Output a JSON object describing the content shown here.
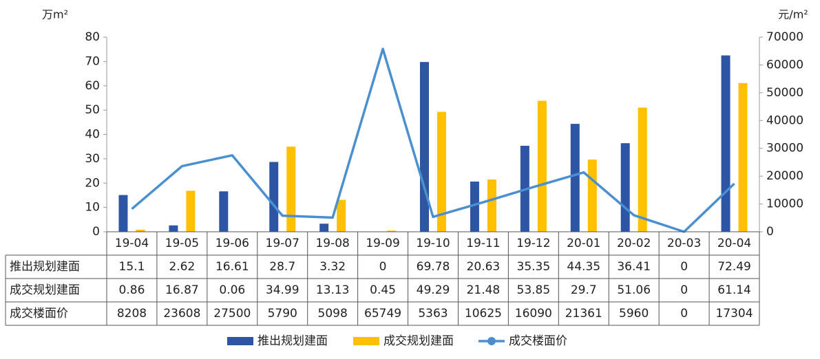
{
  "chart_data": {
    "type": "bar",
    "title": "",
    "left_unit": "万m²",
    "right_unit": "元/m²",
    "categories": [
      "19-04",
      "19-05",
      "19-06",
      "19-07",
      "19-08",
      "19-09",
      "19-10",
      "19-11",
      "19-12",
      "20-01",
      "20-02",
      "20-03",
      "20-04"
    ],
    "series": [
      {
        "name": "推出规划建面",
        "type": "bar",
        "axis": "left",
        "color": "#2E54A4",
        "values": [
          15.1,
          2.62,
          16.61,
          28.7,
          3.32,
          0,
          69.78,
          20.63,
          35.35,
          44.35,
          36.41,
          0,
          72.49
        ]
      },
      {
        "name": "成交规划建面",
        "type": "bar",
        "axis": "left",
        "color": "#FFC000",
        "values": [
          0.86,
          16.87,
          0.06,
          34.99,
          13.13,
          0.45,
          49.29,
          21.48,
          53.85,
          29.7,
          51.06,
          0,
          61.14
        ]
      },
      {
        "name": "成交楼面价",
        "type": "line",
        "axis": "right",
        "color": "#4A90D0",
        "values": [
          8208,
          23608,
          27500,
          5790,
          5098,
          65749,
          5363,
          10625,
          16090,
          21361,
          5960,
          0,
          17304
        ]
      }
    ],
    "table": {
      "rows": [
        {
          "label": "推出规划建面",
          "cells": [
            "15.1",
            "2.62",
            "16.61",
            "28.7",
            "3.32",
            "0",
            "69.78",
            "20.63",
            "35.35",
            "44.35",
            "36.41",
            "0",
            "72.49"
          ]
        },
        {
          "label": "成交规划建面",
          "cells": [
            "0.86",
            "16.87",
            "0.06",
            "34.99",
            "13.13",
            "0.45",
            "49.29",
            "21.48",
            "53.85",
            "29.7",
            "51.06",
            "0",
            "61.14"
          ]
        },
        {
          "label": "成交楼面价",
          "cells": [
            "8208",
            "23608",
            "27500",
            "5790",
            "5098",
            "65749",
            "5363",
            "10625",
            "16090",
            "21361",
            "5960",
            "0",
            "17304"
          ]
        }
      ]
    },
    "y_left": {
      "min": 0,
      "max": 80,
      "ticks": [
        "0",
        "10",
        "20",
        "30",
        "40",
        "50",
        "60",
        "70",
        "80"
      ]
    },
    "y_right": {
      "min": 0,
      "max": 70000,
      "ticks": [
        "0",
        "10000",
        "20000",
        "30000",
        "40000",
        "50000",
        "60000",
        "70000"
      ]
    },
    "grid": false,
    "legend_position": "bottom",
    "legend": [
      "推出规划建面",
      "成交规划建面",
      "成交楼面价"
    ]
  }
}
